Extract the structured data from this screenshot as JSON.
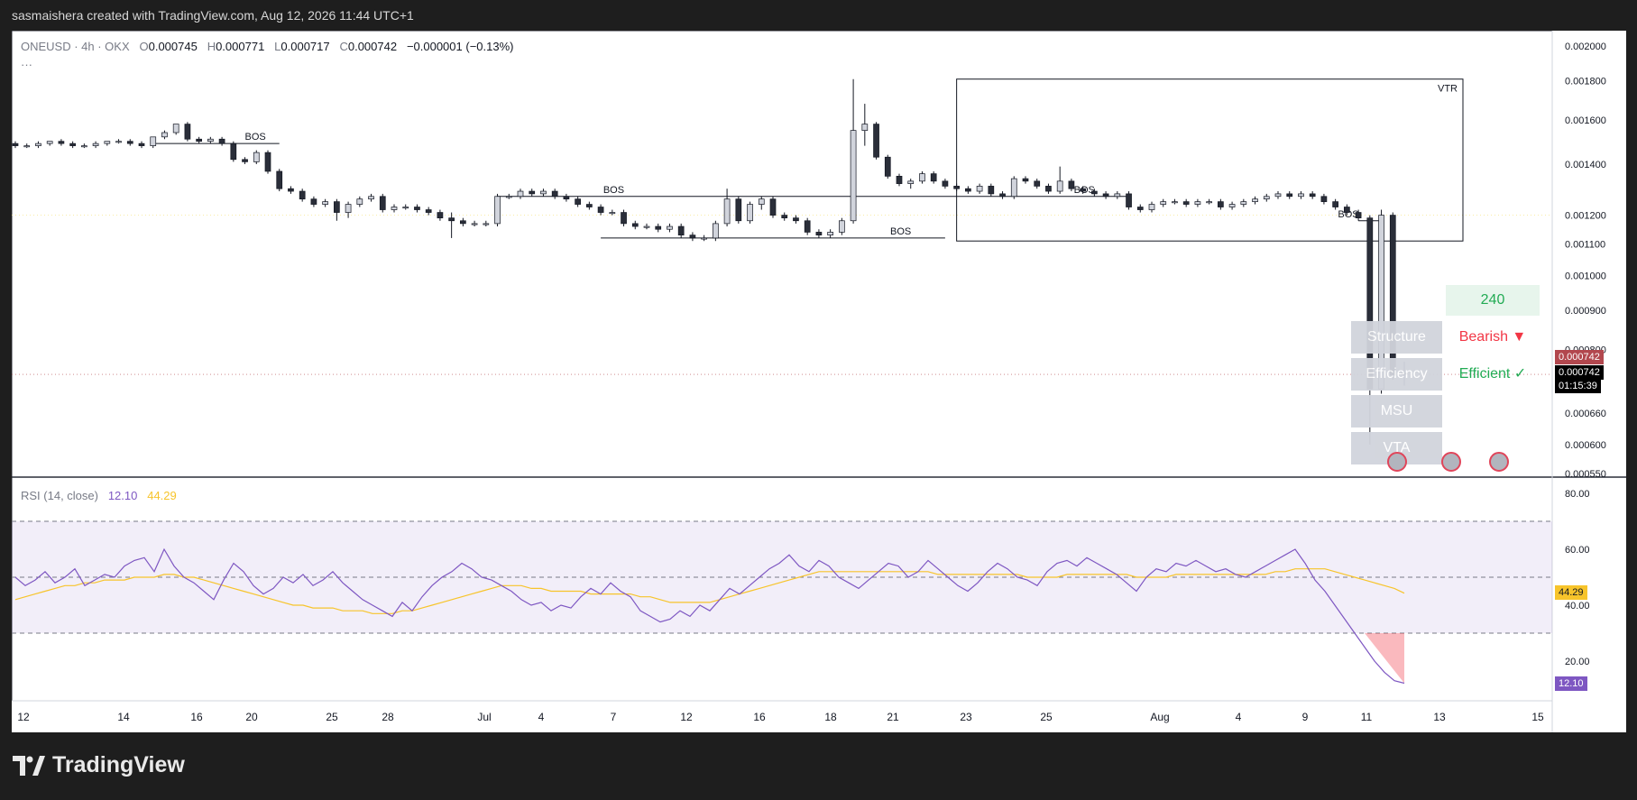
{
  "header": {
    "credit": "sasmaishera created with TradingView.com, Aug 12, 2026 11:44 UTC+1"
  },
  "legend": {
    "symbol": "ONEUSD · 4h · OKX",
    "o_label": "O",
    "o": "0.000745",
    "h_label": "H",
    "h": "0.000771",
    "l_label": "L",
    "l": "0.000717",
    "c_label": "C",
    "c": "0.000742",
    "change": "−0.000001 (−0.13%)",
    "more": "···"
  },
  "rsi_legend": {
    "name": "RSI (14, close)",
    "rsi": "12.10",
    "ma": "44.29"
  },
  "signals": {
    "count": "240",
    "tiles": [
      "Structure",
      "Efficiency",
      "MSU",
      "VTA"
    ],
    "structure_value": "Bearish ▼",
    "efficiency_value": "Efficient ✓"
  },
  "price_badges": {
    "last": "0.000742",
    "close": "0.000742",
    "countdown": "01:15:39"
  },
  "rsi_badges": {
    "ma": "44.29",
    "rsi": "12.10"
  },
  "brand": {
    "name": "TradingView"
  },
  "colors": {
    "bull": "#d1d4dc",
    "bear": "#2a2e39",
    "rsi": "#7e57c2",
    "rsi_ma": "#f7c42b",
    "bearish": "#f23645",
    "efficient": "#22ab54",
    "green": "#22ab54"
  },
  "chart_data": [
    {
      "type": "candlestick",
      "yscale": "log",
      "ylim": [
        0.00055,
        0.00205
      ],
      "y_ticks": [
        "0.002000",
        "0.001800",
        "0.001600",
        "0.001400",
        "0.001200",
        "0.001100",
        "0.001000",
        "0.000900",
        "0.000800",
        "0.000660",
        "0.000600",
        "0.000550"
      ],
      "x_ticks": [
        "12",
        "14",
        "16",
        "20",
        "25",
        "28",
        "Jul",
        "4",
        "7",
        "12",
        "16",
        "18",
        "21",
        "23",
        "25",
        "Aug",
        "4",
        "9",
        "11",
        "13",
        "15"
      ],
      "annotations": [
        "BOS",
        "BOS",
        "BOS",
        "BOS",
        "BOS",
        "VTR"
      ],
      "candles": [
        [
          0.00149,
          0.0015,
          0.00147,
          0.00148
        ],
        [
          0.00148,
          0.00149,
          0.00147,
          0.00148
        ],
        [
          0.00148,
          0.0015,
          0.00147,
          0.00149
        ],
        [
          0.00149,
          0.0015,
          0.00148,
          0.0015
        ],
        [
          0.0015,
          0.00151,
          0.00148,
          0.00149
        ],
        [
          0.00149,
          0.0015,
          0.00147,
          0.00148
        ],
        [
          0.00148,
          0.00149,
          0.00147,
          0.00148
        ],
        [
          0.00148,
          0.0015,
          0.00147,
          0.00149
        ],
        [
          0.00149,
          0.0015,
          0.00148,
          0.0015
        ],
        [
          0.0015,
          0.00151,
          0.00149,
          0.0015
        ],
        [
          0.0015,
          0.00151,
          0.00148,
          0.00149
        ],
        [
          0.00149,
          0.0015,
          0.00147,
          0.00148
        ],
        [
          0.00148,
          0.00152,
          0.00147,
          0.00152
        ],
        [
          0.00152,
          0.00155,
          0.00151,
          0.00154
        ],
        [
          0.00154,
          0.00158,
          0.00153,
          0.00158
        ],
        [
          0.00158,
          0.00159,
          0.0015,
          0.00151
        ],
        [
          0.00151,
          0.00152,
          0.00149,
          0.0015
        ],
        [
          0.0015,
          0.00152,
          0.00149,
          0.00151
        ],
        [
          0.00151,
          0.00152,
          0.00148,
          0.00149
        ],
        [
          0.00149,
          0.0015,
          0.00141,
          0.00142
        ],
        [
          0.00142,
          0.00143,
          0.0014,
          0.00141
        ],
        [
          0.00141,
          0.00146,
          0.0014,
          0.00145
        ],
        [
          0.00145,
          0.00146,
          0.00136,
          0.00137
        ],
        [
          0.00137,
          0.00138,
          0.00129,
          0.0013
        ],
        [
          0.0013,
          0.00131,
          0.00128,
          0.00129
        ],
        [
          0.00129,
          0.0013,
          0.00125,
          0.00126
        ],
        [
          0.00126,
          0.00127,
          0.00123,
          0.00124
        ],
        [
          0.00124,
          0.00126,
          0.00123,
          0.00125
        ],
        [
          0.00125,
          0.00126,
          0.00118,
          0.00121
        ],
        [
          0.00121,
          0.00125,
          0.00119,
          0.00124
        ],
        [
          0.00124,
          0.00127,
          0.00123,
          0.00126
        ],
        [
          0.00126,
          0.00128,
          0.00125,
          0.00127
        ],
        [
          0.00127,
          0.00128,
          0.00121,
          0.00122
        ],
        [
          0.00122,
          0.00124,
          0.00121,
          0.00123
        ],
        [
          0.00123,
          0.00124,
          0.00122,
          0.00123
        ],
        [
          0.00123,
          0.00124,
          0.00121,
          0.00122
        ],
        [
          0.00122,
          0.00123,
          0.0012,
          0.00121
        ],
        [
          0.00121,
          0.00122,
          0.00118,
          0.00119
        ],
        [
          0.00119,
          0.00121,
          0.00112,
          0.00118
        ],
        [
          0.00118,
          0.00119,
          0.00116,
          0.00117
        ],
        [
          0.00117,
          0.00118,
          0.00116,
          0.00117
        ],
        [
          0.00117,
          0.00118,
          0.00116,
          0.00117
        ],
        [
          0.00117,
          0.00128,
          0.00116,
          0.00127
        ],
        [
          0.00127,
          0.00128,
          0.00126,
          0.00127
        ],
        [
          0.00127,
          0.0013,
          0.00126,
          0.00129
        ],
        [
          0.00129,
          0.0013,
          0.00127,
          0.00128
        ],
        [
          0.00128,
          0.0013,
          0.00127,
          0.00129
        ],
        [
          0.00129,
          0.0013,
          0.00126,
          0.00127
        ],
        [
          0.00127,
          0.00128,
          0.00125,
          0.00126
        ],
        [
          0.00126,
          0.00127,
          0.00123,
          0.00124
        ],
        [
          0.00124,
          0.00125,
          0.00122,
          0.00123
        ],
        [
          0.00123,
          0.00124,
          0.0012,
          0.00121
        ],
        [
          0.00121,
          0.00122,
          0.0012,
          0.00121
        ],
        [
          0.00121,
          0.00122,
          0.00116,
          0.00117
        ],
        [
          0.00117,
          0.00118,
          0.00115,
          0.00116
        ],
        [
          0.00116,
          0.00117,
          0.00115,
          0.00116
        ],
        [
          0.00116,
          0.00117,
          0.00114,
          0.00115
        ],
        [
          0.00115,
          0.00117,
          0.00114,
          0.00116
        ],
        [
          0.00116,
          0.00117,
          0.00112,
          0.00113
        ],
        [
          0.00113,
          0.00114,
          0.00111,
          0.00112
        ],
        [
          0.00112,
          0.00113,
          0.00111,
          0.00112
        ],
        [
          0.00112,
          0.00118,
          0.00111,
          0.00117
        ],
        [
          0.00117,
          0.0013,
          0.00116,
          0.00126
        ],
        [
          0.00126,
          0.00127,
          0.00117,
          0.00118
        ],
        [
          0.00118,
          0.00125,
          0.00117,
          0.00124
        ],
        [
          0.00124,
          0.00127,
          0.00122,
          0.00126
        ],
        [
          0.00126,
          0.00127,
          0.00119,
          0.0012
        ],
        [
          0.0012,
          0.00121,
          0.00118,
          0.00119
        ],
        [
          0.00119,
          0.0012,
          0.00117,
          0.00118
        ],
        [
          0.00118,
          0.00119,
          0.00113,
          0.00114
        ],
        [
          0.00114,
          0.00115,
          0.00112,
          0.00113
        ],
        [
          0.00113,
          0.00115,
          0.00112,
          0.00114
        ],
        [
          0.00114,
          0.00119,
          0.00113,
          0.00118
        ],
        [
          0.00118,
          0.00181,
          0.00117,
          0.00155
        ],
        [
          0.00155,
          0.00168,
          0.00148,
          0.00158
        ],
        [
          0.00158,
          0.00159,
          0.00142,
          0.00143
        ],
        [
          0.00143,
          0.00144,
          0.00134,
          0.00135
        ],
        [
          0.00135,
          0.00136,
          0.00131,
          0.00132
        ],
        [
          0.00132,
          0.00134,
          0.0013,
          0.00133
        ],
        [
          0.00133,
          0.00137,
          0.00132,
          0.00136
        ],
        [
          0.00136,
          0.00137,
          0.00132,
          0.00133
        ],
        [
          0.00133,
          0.00134,
          0.0013,
          0.00131
        ],
        [
          0.00131,
          0.00132,
          0.00129,
          0.0013
        ],
        [
          0.0013,
          0.00131,
          0.00128,
          0.00129
        ],
        [
          0.00129,
          0.00132,
          0.00128,
          0.00131
        ],
        [
          0.00131,
          0.00132,
          0.00127,
          0.00128
        ],
        [
          0.00128,
          0.00129,
          0.00126,
          0.00127
        ],
        [
          0.00127,
          0.00135,
          0.00126,
          0.00134
        ],
        [
          0.00134,
          0.00135,
          0.00132,
          0.00133
        ],
        [
          0.00133,
          0.00134,
          0.0013,
          0.00131
        ],
        [
          0.00131,
          0.00132,
          0.00128,
          0.00129
        ],
        [
          0.00129,
          0.00139,
          0.00128,
          0.00133
        ],
        [
          0.00133,
          0.00134,
          0.00129,
          0.0013
        ],
        [
          0.0013,
          0.00131,
          0.00128,
          0.00129
        ],
        [
          0.00129,
          0.0013,
          0.00127,
          0.00128
        ],
        [
          0.00128,
          0.00129,
          0.00126,
          0.00127
        ],
        [
          0.00127,
          0.00129,
          0.00126,
          0.00128
        ],
        [
          0.00128,
          0.00129,
          0.00122,
          0.00123
        ],
        [
          0.00123,
          0.00124,
          0.00121,
          0.00122
        ],
        [
          0.00122,
          0.00125,
          0.00121,
          0.00124
        ],
        [
          0.00124,
          0.00126,
          0.00123,
          0.00125
        ],
        [
          0.00125,
          0.00126,
          0.00124,
          0.00125
        ],
        [
          0.00125,
          0.00126,
          0.00123,
          0.00124
        ],
        [
          0.00124,
          0.00126,
          0.00123,
          0.00125
        ],
        [
          0.00125,
          0.00126,
          0.00124,
          0.00125
        ],
        [
          0.00125,
          0.00126,
          0.00122,
          0.00123
        ],
        [
          0.00123,
          0.00125,
          0.00122,
          0.00124
        ],
        [
          0.00124,
          0.00126,
          0.00123,
          0.00125
        ],
        [
          0.00125,
          0.00127,
          0.00124,
          0.00126
        ],
        [
          0.00126,
          0.00128,
          0.00125,
          0.00127
        ],
        [
          0.00127,
          0.00129,
          0.00126,
          0.00128
        ],
        [
          0.00128,
          0.00129,
          0.00126,
          0.00127
        ],
        [
          0.00127,
          0.00129,
          0.00126,
          0.00128
        ],
        [
          0.00128,
          0.00129,
          0.00126,
          0.00127
        ],
        [
          0.00127,
          0.00128,
          0.00124,
          0.00125
        ],
        [
          0.00125,
          0.00126,
          0.00122,
          0.00123
        ],
        [
          0.00123,
          0.00124,
          0.0012,
          0.00121
        ],
        [
          0.00121,
          0.00122,
          0.00118,
          0.00119
        ],
        [
          0.00119,
          0.0012,
          0.0006,
          0.00071
        ],
        [
          0.00071,
          0.00122,
          0.0007,
          0.0012
        ],
        [
          0.0012,
          0.00121,
          0.00073,
          0.00074
        ],
        [
          0.000745,
          0.000771,
          0.000717,
          0.000742
        ]
      ]
    },
    {
      "type": "line",
      "title": "RSI (14, close)",
      "ylim": [
        0,
        100
      ],
      "y_ticks": [
        "80.00",
        "60.00",
        "40.00",
        "20.00"
      ],
      "bands": [
        30,
        50,
        70
      ],
      "series": [
        {
          "name": "RSI",
          "values": [
            50,
            47,
            49,
            52,
            48,
            50,
            53,
            47,
            49,
            51,
            50,
            54,
            56,
            57,
            52,
            60,
            54,
            50,
            48,
            45,
            42,
            49,
            55,
            52,
            47,
            44,
            46,
            50,
            48,
            51,
            47,
            49,
            52,
            48,
            45,
            42,
            40,
            38,
            36,
            41,
            38,
            43,
            47,
            50,
            52,
            55,
            53,
            50,
            49,
            47,
            45,
            42,
            40,
            41,
            38,
            40,
            39,
            43,
            46,
            44,
            48,
            45,
            43,
            38,
            36,
            34,
            35,
            38,
            36,
            40,
            38,
            42,
            46,
            44,
            47,
            50,
            53,
            55,
            58,
            54,
            52,
            56,
            54,
            50,
            48,
            46,
            49,
            52,
            55,
            54,
            50,
            52,
            56,
            53,
            50,
            47,
            45,
            48,
            52,
            55,
            53,
            50,
            49,
            47,
            52,
            55,
            56,
            54,
            57,
            55,
            53,
            51,
            48,
            45,
            50,
            53,
            52,
            55,
            54,
            56,
            54,
            52,
            53,
            51,
            50,
            52,
            54,
            56,
            58,
            60,
            55,
            49,
            45,
            40,
            35,
            30,
            25,
            20,
            16,
            13,
            12.1
          ]
        },
        {
          "name": "RSI MA",
          "values": [
            42,
            43,
            44,
            45,
            46,
            47,
            47,
            48,
            48,
            49,
            49,
            49,
            50,
            50,
            50,
            51,
            51,
            50,
            50,
            49,
            48,
            47,
            46,
            45,
            44,
            43,
            42,
            41,
            40,
            40,
            39,
            39,
            39,
            38,
            38,
            38,
            37,
            37,
            37,
            38,
            38,
            39,
            40,
            41,
            42,
            43,
            44,
            45,
            46,
            47,
            47,
            47,
            46,
            46,
            45,
            45,
            45,
            45,
            44,
            44,
            44,
            44,
            44,
            43,
            43,
            42,
            41,
            41,
            41,
            41,
            41,
            42,
            43,
            44,
            45,
            46,
            47,
            48,
            49,
            50,
            51,
            52,
            52,
            52,
            52,
            52,
            52,
            52,
            52,
            52,
            52,
            52,
            52,
            51,
            51,
            51,
            51,
            51,
            51,
            51,
            51,
            51,
            50,
            50,
            50,
            50,
            51,
            51,
            51,
            51,
            51,
            51,
            51,
            50,
            50,
            50,
            50,
            51,
            51,
            51,
            51,
            51,
            51,
            51,
            51,
            51,
            51,
            52,
            52,
            53,
            53,
            53,
            53,
            52,
            51,
            50,
            49,
            48,
            47,
            46,
            44.29
          ]
        }
      ]
    }
  ]
}
